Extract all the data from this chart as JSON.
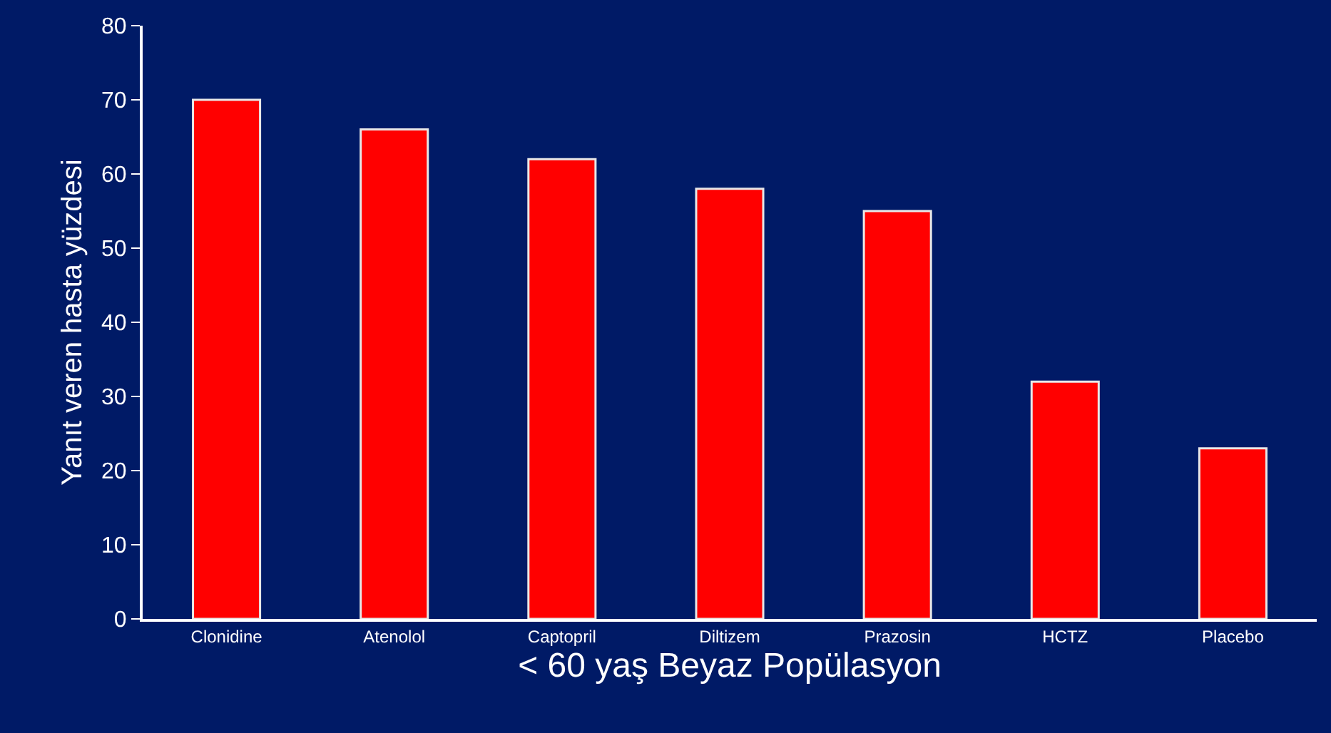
{
  "chart_data": {
    "type": "bar",
    "categories": [
      "Clonidine",
      "Atenolol",
      "Captopril",
      "Diltizem",
      "Prazosin",
      "HCTZ",
      "Placebo"
    ],
    "values": [
      70,
      66,
      62,
      58,
      55,
      32,
      23
    ],
    "color": "#ff0000",
    "xlabel": "< 60 yaş Beyaz Popülasyon",
    "ylabel": "Yanıt veren hasta yüzdesi",
    "ylim": [
      0,
      80
    ],
    "yticks": [
      0,
      10,
      20,
      30,
      40,
      50,
      60,
      70,
      80
    ],
    "grid": false,
    "legend": false
  }
}
